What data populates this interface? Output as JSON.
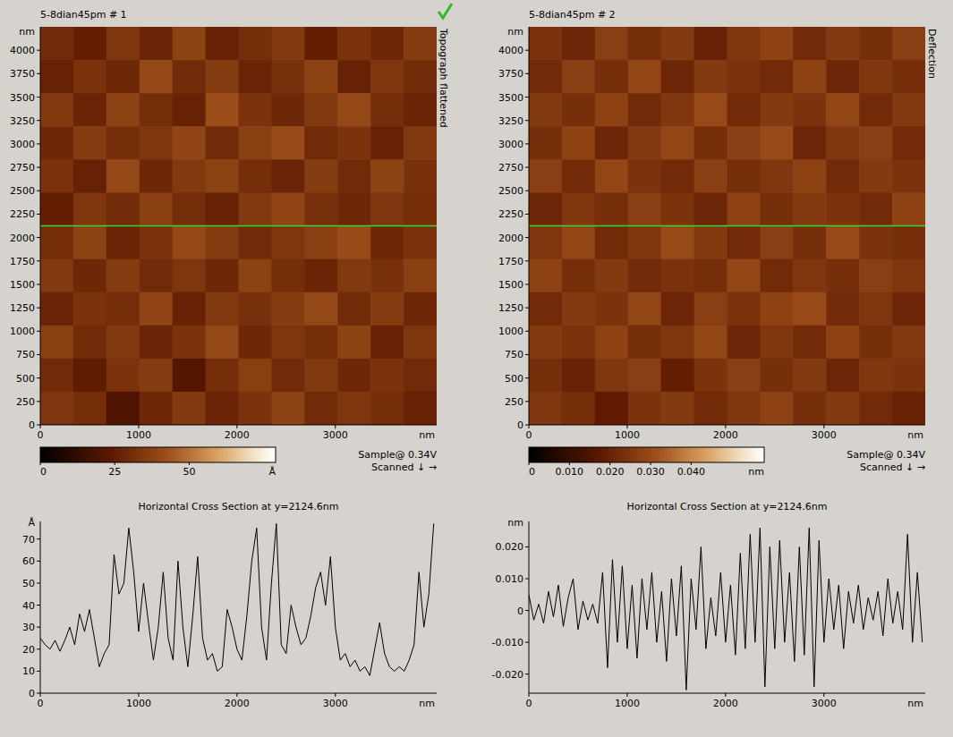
{
  "chart_data": [
    {
      "type": "heatmap",
      "title": "5-8dian45pm # 1",
      "side_label": "Topograph flattened",
      "xlabel": "nm",
      "ylabel": "nm",
      "xlim": [
        0,
        4030
      ],
      "ylim": [
        0,
        4250
      ],
      "xticks": [
        0,
        1000,
        2000,
        3000
      ],
      "yticks": [
        0,
        250,
        500,
        750,
        1000,
        1250,
        1500,
        1750,
        2000,
        2250,
        2500,
        2750,
        3000,
        3250,
        3500,
        3750,
        4000
      ],
      "line_y": 2124.6,
      "cells": [
        [
          30,
          26,
          34,
          28,
          38,
          27,
          31,
          35,
          26,
          33,
          29,
          36
        ],
        [
          27,
          33,
          29,
          40,
          30,
          36,
          28,
          32,
          38,
          27,
          34,
          30
        ],
        [
          35,
          28,
          38,
          31,
          27,
          42,
          33,
          29,
          35,
          40,
          31,
          28
        ],
        [
          29,
          36,
          31,
          34,
          39,
          30,
          37,
          41,
          30,
          33,
          27,
          35
        ],
        [
          33,
          27,
          40,
          29,
          35,
          38,
          31,
          28,
          36,
          30,
          38,
          32
        ],
        [
          26,
          34,
          30,
          37,
          31,
          27,
          35,
          39,
          32,
          29,
          34,
          31
        ],
        [
          31,
          38,
          28,
          33,
          40,
          36,
          30,
          34,
          37,
          41,
          29,
          33
        ],
        [
          35,
          29,
          36,
          30,
          34,
          29,
          38,
          31,
          28,
          35,
          32,
          37
        ],
        [
          28,
          33,
          31,
          39,
          27,
          35,
          32,
          36,
          40,
          30,
          36,
          29
        ],
        [
          37,
          30,
          35,
          28,
          33,
          40,
          29,
          34,
          31,
          38,
          27,
          34
        ],
        [
          30,
          25,
          33,
          36,
          22,
          31,
          37,
          30,
          35,
          29,
          33,
          30
        ],
        [
          34,
          31,
          20,
          29,
          35,
          28,
          33,
          38,
          30,
          34,
          31,
          27
        ]
      ],
      "color_range": [
        0,
        79
      ],
      "color_ticks": [
        0,
        25,
        50
      ],
      "colorbar_label": "Å",
      "annotations": [
        "Sample@ 0.34V",
        "Scanned ↓ →"
      ]
    },
    {
      "type": "heatmap",
      "title": "5-8dian45pm # 2",
      "side_label": "Deflection",
      "xlabel": "nm",
      "ylabel": "nm",
      "xlim": [
        0,
        4030
      ],
      "ylim": [
        0,
        4250
      ],
      "xticks": [
        0,
        1000,
        2000,
        3000
      ],
      "yticks": [
        0,
        250,
        500,
        750,
        1000,
        1250,
        1500,
        1750,
        2000,
        2250,
        2500,
        2750,
        3000,
        3250,
        3500,
        3750,
        4000
      ],
      "line_y": 2124.6,
      "cells": [
        [
          0.024,
          0.021,
          0.027,
          0.023,
          0.026,
          0.02,
          0.025,
          0.028,
          0.022,
          0.026,
          0.023,
          0.027
        ],
        [
          0.022,
          0.027,
          0.023,
          0.029,
          0.021,
          0.026,
          0.024,
          0.022,
          0.028,
          0.021,
          0.025,
          0.023
        ],
        [
          0.026,
          0.023,
          0.028,
          0.022,
          0.025,
          0.03,
          0.022,
          0.026,
          0.024,
          0.029,
          0.022,
          0.026
        ],
        [
          0.023,
          0.028,
          0.021,
          0.026,
          0.029,
          0.023,
          0.027,
          0.03,
          0.021,
          0.025,
          0.027,
          0.022
        ],
        [
          0.027,
          0.022,
          0.029,
          0.024,
          0.022,
          0.027,
          0.023,
          0.025,
          0.028,
          0.022,
          0.026,
          0.024
        ],
        [
          0.021,
          0.025,
          0.023,
          0.027,
          0.024,
          0.021,
          0.028,
          0.023,
          0.026,
          0.024,
          0.022,
          0.028
        ],
        [
          0.025,
          0.029,
          0.022,
          0.025,
          0.03,
          0.026,
          0.022,
          0.027,
          0.023,
          0.03,
          0.024,
          0.023
        ],
        [
          0.028,
          0.023,
          0.026,
          0.022,
          0.024,
          0.023,
          0.029,
          0.022,
          0.025,
          0.023,
          0.027,
          0.025
        ],
        [
          0.022,
          0.026,
          0.024,
          0.029,
          0.021,
          0.027,
          0.024,
          0.028,
          0.03,
          0.022,
          0.025,
          0.021
        ],
        [
          0.026,
          0.024,
          0.028,
          0.023,
          0.025,
          0.029,
          0.021,
          0.025,
          0.022,
          0.028,
          0.023,
          0.026
        ],
        [
          0.023,
          0.02,
          0.025,
          0.027,
          0.019,
          0.024,
          0.027,
          0.023,
          0.026,
          0.021,
          0.025,
          0.024
        ],
        [
          0.025,
          0.023,
          0.018,
          0.024,
          0.026,
          0.022,
          0.025,
          0.028,
          0.023,
          0.026,
          0.022,
          0.02
        ]
      ],
      "color_range": [
        0,
        0.058
      ],
      "color_ticks": [
        0,
        {
          "value": 0.01,
          "label": "0.010"
        },
        {
          "value": 0.02,
          "label": "0.020"
        },
        {
          "value": 0.03,
          "label": "0.030"
        },
        {
          "value": 0.04,
          "label": "0.040"
        }
      ],
      "colorbar_label": "nm",
      "annotations": [
        "Sample@ 0.34V",
        "Scanned ↓ →"
      ]
    },
    {
      "type": "line",
      "title": "Horizontal Cross Section at y=2124.6nm",
      "xlabel": "nm",
      "ylabel": "Å",
      "xlim": [
        0,
        4030
      ],
      "ylim": [
        0,
        78
      ],
      "xticks": [
        0,
        1000,
        2000,
        3000
      ],
      "yticks": [
        0,
        10,
        20,
        30,
        40,
        50,
        60,
        70
      ],
      "color": "#000000",
      "x": [
        0,
        50,
        100,
        150,
        200,
        250,
        300,
        350,
        400,
        450,
        500,
        550,
        600,
        650,
        700,
        750,
        800,
        850,
        900,
        950,
        1000,
        1050,
        1100,
        1150,
        1200,
        1250,
        1300,
        1350,
        1400,
        1450,
        1500,
        1550,
        1600,
        1650,
        1700,
        1750,
        1800,
        1850,
        1900,
        1950,
        2000,
        2050,
        2100,
        2150,
        2200,
        2250,
        2300,
        2350,
        2400,
        2450,
        2500,
        2550,
        2600,
        2650,
        2700,
        2750,
        2800,
        2850,
        2900,
        2950,
        3000,
        3050,
        3100,
        3150,
        3200,
        3250,
        3300,
        3350,
        3400,
        3450,
        3500,
        3550,
        3600,
        3650,
        3700,
        3750,
        3800,
        3850,
        3900,
        3950,
        4000
      ],
      "values": [
        25,
        22,
        20,
        24,
        19,
        24,
        30,
        22,
        36,
        28,
        38,
        25,
        12,
        18,
        22,
        63,
        45,
        50,
        75,
        55,
        28,
        50,
        32,
        15,
        30,
        55,
        25,
        15,
        60,
        30,
        12,
        35,
        62,
        25,
        15,
        18,
        10,
        12,
        38,
        30,
        20,
        15,
        35,
        60,
        75,
        30,
        15,
        50,
        77,
        22,
        18,
        40,
        30,
        22,
        25,
        35,
        48,
        55,
        40,
        62,
        30,
        15,
        18,
        12,
        15,
        10,
        12,
        8,
        20,
        32,
        18,
        12,
        10,
        12,
        10,
        15,
        22,
        55,
        30,
        45,
        77
      ]
    },
    {
      "type": "line",
      "title": "Horizontal Cross Section at y=2124.6nm",
      "xlabel": "nm",
      "ylabel": "nm",
      "xlim": [
        0,
        4030
      ],
      "ylim": [
        -0.026,
        0.028
      ],
      "xticks": [
        0,
        1000,
        2000,
        3000
      ],
      "yticks": [
        {
          "value": -0.02,
          "label": "-0.020"
        },
        {
          "value": -0.01,
          "label": "-0.010"
        },
        0,
        {
          "value": 0.01,
          "label": "0.010"
        },
        {
          "value": 0.02,
          "label": "0.020"
        }
      ],
      "color": "#000000",
      "x": [
        0,
        50,
        100,
        150,
        200,
        250,
        300,
        350,
        400,
        450,
        500,
        550,
        600,
        650,
        700,
        750,
        800,
        850,
        900,
        950,
        1000,
        1050,
        1100,
        1150,
        1200,
        1250,
        1300,
        1350,
        1400,
        1450,
        1500,
        1550,
        1600,
        1650,
        1700,
        1750,
        1800,
        1850,
        1900,
        1950,
        2000,
        2050,
        2100,
        2150,
        2200,
        2250,
        2300,
        2350,
        2400,
        2450,
        2500,
        2550,
        2600,
        2650,
        2700,
        2750,
        2800,
        2850,
        2900,
        2950,
        3000,
        3050,
        3100,
        3150,
        3200,
        3250,
        3300,
        3350,
        3400,
        3450,
        3500,
        3550,
        3600,
        3650,
        3700,
        3750,
        3800,
        3850,
        3900,
        3950,
        4000
      ],
      "values": [
        0.005,
        -0.003,
        0.002,
        -0.004,
        0.006,
        -0.002,
        0.008,
        -0.005,
        0.004,
        0.01,
        -0.006,
        0.003,
        -0.003,
        0.002,
        -0.004,
        0.012,
        -0.018,
        0.016,
        -0.01,
        0.014,
        -0.012,
        0.008,
        -0.015,
        0.01,
        -0.006,
        0.012,
        -0.01,
        0.006,
        -0.016,
        0.01,
        -0.008,
        0.014,
        -0.025,
        0.01,
        -0.006,
        0.02,
        -0.012,
        0.004,
        -0.008,
        0.012,
        -0.01,
        0.008,
        -0.014,
        0.018,
        -0.012,
        0.024,
        -0.01,
        0.026,
        -0.024,
        0.02,
        -0.012,
        0.022,
        -0.01,
        0.012,
        -0.016,
        0.02,
        -0.014,
        0.026,
        -0.024,
        0.022,
        -0.01,
        0.01,
        -0.006,
        0.008,
        -0.012,
        0.006,
        -0.004,
        0.008,
        -0.006,
        0.004,
        -0.003,
        0.006,
        -0.008,
        0.01,
        -0.004,
        0.006,
        -0.006,
        0.024,
        -0.01,
        0.012,
        -0.01
      ]
    }
  ]
}
